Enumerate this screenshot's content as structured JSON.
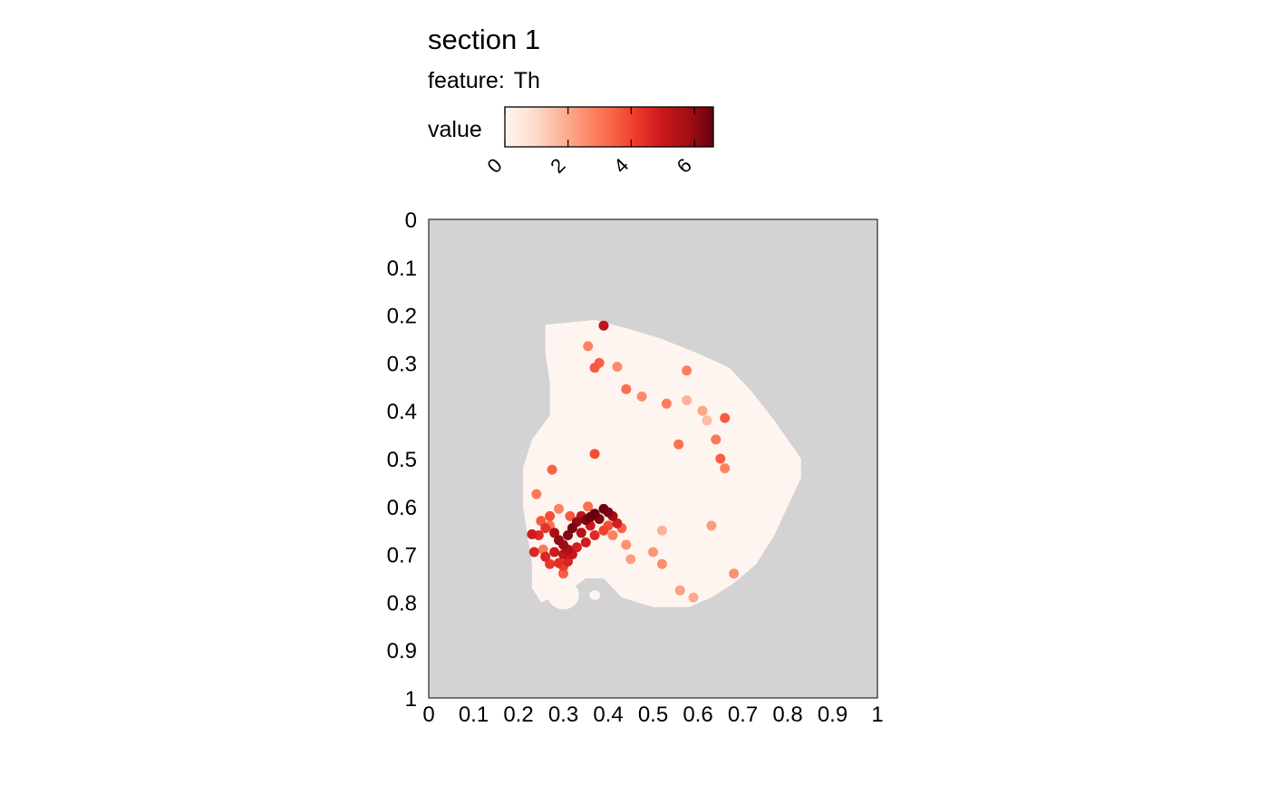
{
  "chart_data": {
    "type": "scatter",
    "title": "section 1",
    "subtitle_prefix": "feature:",
    "subtitle_feature": "Th",
    "legend": {
      "title": "value",
      "ticks": [
        0,
        2,
        4,
        6
      ],
      "range": [
        0,
        6.6
      ],
      "placement": "top"
    },
    "xlim": [
      0,
      1
    ],
    "ylim": [
      0,
      1
    ],
    "y_reversed": true,
    "xticks": [
      "0",
      "0.1",
      "0.2",
      "0.3",
      "0.4",
      "0.5",
      "0.6",
      "0.7",
      "0.8",
      "0.9",
      "1"
    ],
    "yticks": [
      "0",
      "0.1",
      "0.2",
      "0.3",
      "0.4",
      "0.5",
      "0.6",
      "0.7",
      "0.8",
      "0.9",
      "1"
    ],
    "panel_background": "#d3d3d3",
    "colorscale": [
      "#fff5f0",
      "#fee0d2",
      "#fcbba1",
      "#fc9272",
      "#fb6a4a",
      "#ef3b2c",
      "#cb181d",
      "#a50f15",
      "#67000d"
    ],
    "tissue_outline": [
      [
        0.26,
        0.22
      ],
      [
        0.37,
        0.21
      ],
      [
        0.45,
        0.23
      ],
      [
        0.52,
        0.25
      ],
      [
        0.6,
        0.28
      ],
      [
        0.67,
        0.31
      ],
      [
        0.72,
        0.36
      ],
      [
        0.77,
        0.42
      ],
      [
        0.8,
        0.46
      ],
      [
        0.83,
        0.5
      ],
      [
        0.83,
        0.54
      ],
      [
        0.8,
        0.6
      ],
      [
        0.77,
        0.66
      ],
      [
        0.73,
        0.72
      ],
      [
        0.68,
        0.76
      ],
      [
        0.63,
        0.79
      ],
      [
        0.58,
        0.81
      ],
      [
        0.5,
        0.81
      ],
      [
        0.43,
        0.79
      ],
      [
        0.39,
        0.75
      ],
      [
        0.35,
        0.75
      ],
      [
        0.32,
        0.77
      ],
      [
        0.3,
        0.78
      ],
      [
        0.28,
        0.79
      ],
      [
        0.25,
        0.8
      ],
      [
        0.23,
        0.77
      ],
      [
        0.23,
        0.72
      ],
      [
        0.22,
        0.66
      ],
      [
        0.21,
        0.6
      ],
      [
        0.21,
        0.52
      ],
      [
        0.23,
        0.46
      ],
      [
        0.27,
        0.41
      ],
      [
        0.27,
        0.34
      ],
      [
        0.26,
        0.28
      ]
    ],
    "tissue_extra_blobs": [
      [
        0.3,
        0.785,
        0.035,
        0.03
      ],
      [
        0.37,
        0.785,
        0.012,
        0.01
      ]
    ],
    "points": [
      [
        0.39,
        0.222,
        5.2
      ],
      [
        0.355,
        0.265,
        2.8
      ],
      [
        0.38,
        0.3,
        3.5
      ],
      [
        0.42,
        0.308,
        2.6
      ],
      [
        0.37,
        0.31,
        3.6
      ],
      [
        0.575,
        0.316,
        2.9
      ],
      [
        0.44,
        0.355,
        3.2
      ],
      [
        0.475,
        0.37,
        2.6
      ],
      [
        0.53,
        0.385,
        2.9
      ],
      [
        0.575,
        0.378,
        1.8
      ],
      [
        0.61,
        0.4,
        2.1
      ],
      [
        0.62,
        0.42,
        1.6
      ],
      [
        0.66,
        0.415,
        3.6
      ],
      [
        0.64,
        0.46,
        3.0
      ],
      [
        0.557,
        0.47,
        3.2
      ],
      [
        0.37,
        0.49,
        3.8
      ],
      [
        0.275,
        0.523,
        3.4
      ],
      [
        0.24,
        0.574,
        3.0
      ],
      [
        0.65,
        0.5,
        3.5
      ],
      [
        0.66,
        0.52,
        2.8
      ],
      [
        0.27,
        0.62,
        3.8
      ],
      [
        0.25,
        0.63,
        3.6
      ],
      [
        0.26,
        0.645,
        4.3
      ],
      [
        0.245,
        0.66,
        4.5
      ],
      [
        0.23,
        0.658,
        4.9
      ],
      [
        0.28,
        0.655,
        5.7
      ],
      [
        0.29,
        0.67,
        6.0
      ],
      [
        0.3,
        0.68,
        5.9
      ],
      [
        0.31,
        0.66,
        6.2
      ],
      [
        0.32,
        0.645,
        6.4
      ],
      [
        0.33,
        0.632,
        6.0
      ],
      [
        0.34,
        0.62,
        5.3
      ],
      [
        0.35,
        0.628,
        6.3
      ],
      [
        0.36,
        0.622,
        6.5
      ],
      [
        0.37,
        0.615,
        6.6
      ],
      [
        0.38,
        0.626,
        6.2
      ],
      [
        0.39,
        0.605,
        6.5
      ],
      [
        0.4,
        0.612,
        6.3
      ],
      [
        0.41,
        0.62,
        5.8
      ],
      [
        0.42,
        0.635,
        4.8
      ],
      [
        0.36,
        0.64,
        4.9
      ],
      [
        0.34,
        0.655,
        5.5
      ],
      [
        0.31,
        0.69,
        5.6
      ],
      [
        0.3,
        0.7,
        5.2
      ],
      [
        0.28,
        0.695,
        4.9
      ],
      [
        0.26,
        0.705,
        4.6
      ],
      [
        0.27,
        0.72,
        4.2
      ],
      [
        0.29,
        0.718,
        4.4
      ],
      [
        0.31,
        0.715,
        4.7
      ],
      [
        0.32,
        0.7,
        5.0
      ],
      [
        0.33,
        0.685,
        4.8
      ],
      [
        0.35,
        0.675,
        4.9
      ],
      [
        0.37,
        0.66,
        4.5
      ],
      [
        0.39,
        0.65,
        4.0
      ],
      [
        0.4,
        0.64,
        3.8
      ],
      [
        0.43,
        0.645,
        3.4
      ],
      [
        0.27,
        0.64,
        3.2
      ],
      [
        0.255,
        0.69,
        3.0
      ],
      [
        0.235,
        0.695,
        4.6
      ],
      [
        0.3,
        0.725,
        4.1
      ],
      [
        0.3,
        0.74,
        3.5
      ],
      [
        0.29,
        0.605,
        2.8
      ],
      [
        0.315,
        0.62,
        3.6
      ],
      [
        0.355,
        0.6,
        3.2
      ],
      [
        0.41,
        0.66,
        2.8
      ],
      [
        0.44,
        0.68,
        2.5
      ],
      [
        0.5,
        0.695,
        2.4
      ],
      [
        0.52,
        0.72,
        2.6
      ],
      [
        0.59,
        0.79,
        2.0
      ],
      [
        0.56,
        0.775,
        2.2
      ],
      [
        0.63,
        0.64,
        2.3
      ],
      [
        0.68,
        0.74,
        2.5
      ],
      [
        0.52,
        0.65,
        1.8
      ],
      [
        0.45,
        0.71,
        2.2
      ]
    ]
  }
}
